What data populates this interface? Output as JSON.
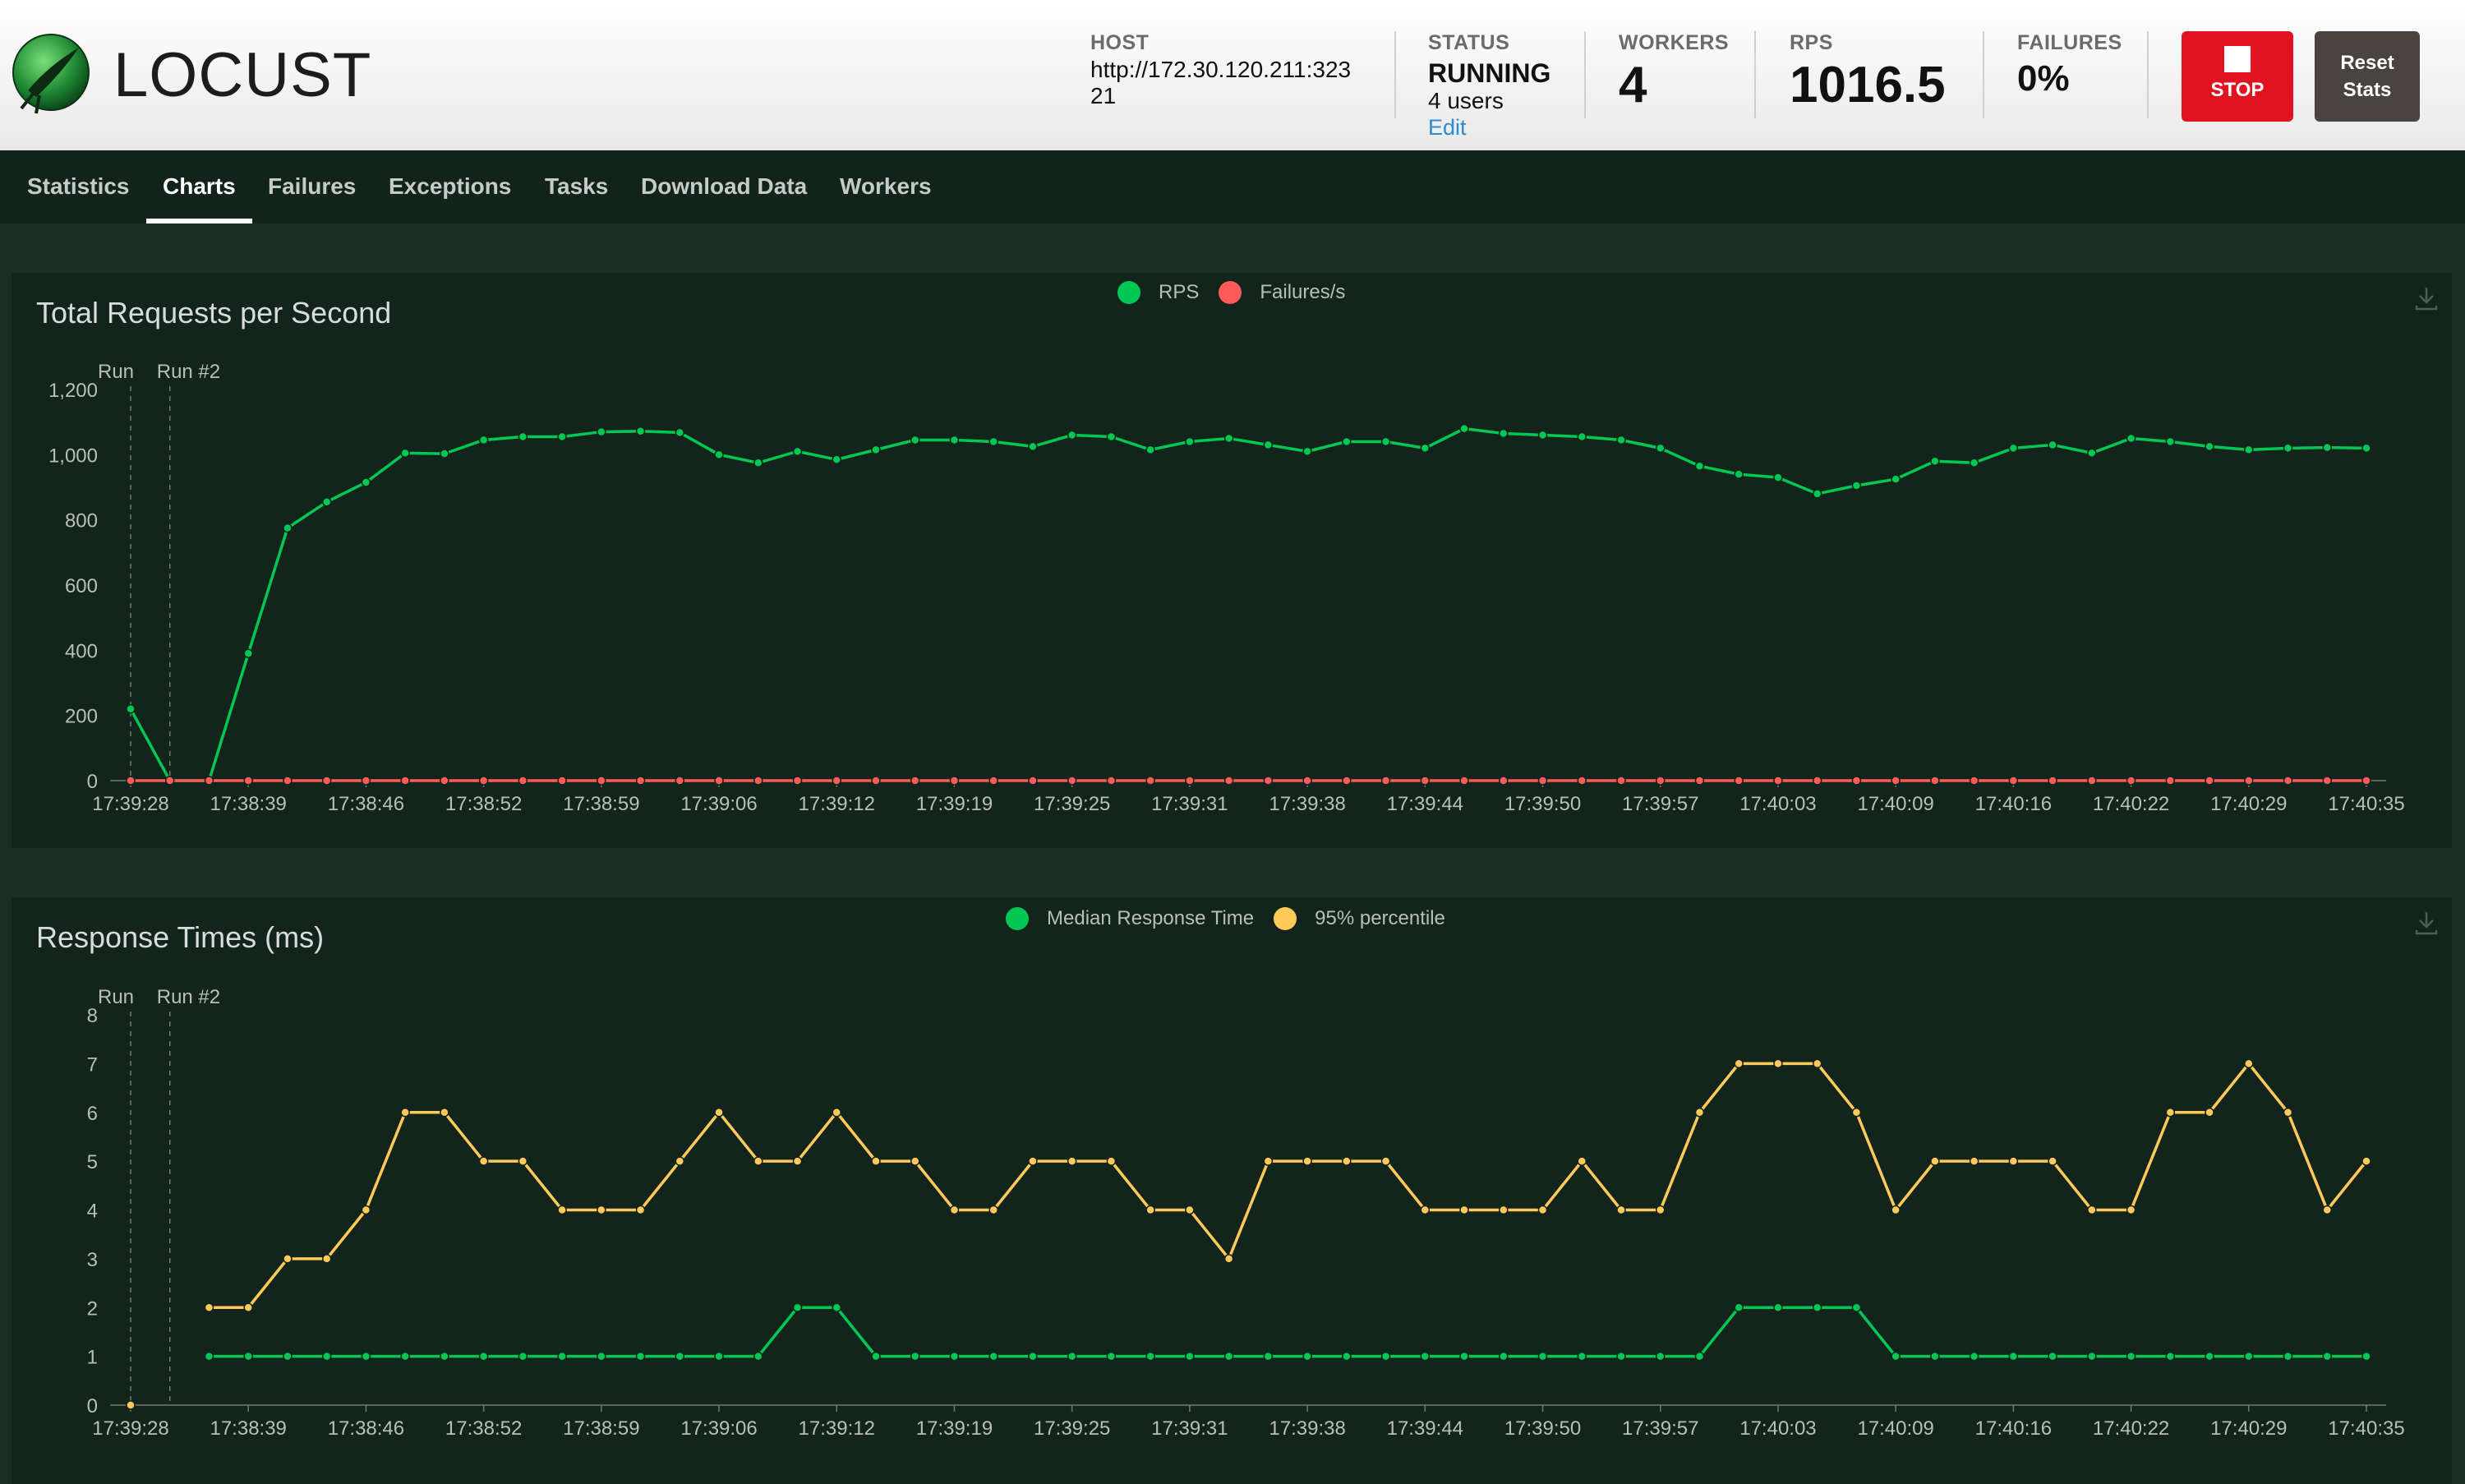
{
  "app": {
    "name": "LOCUST"
  },
  "header": {
    "host_label": "HOST",
    "host_value_line1": "http://172.30.120.211:323",
    "host_value_line2": "21",
    "status_label": "STATUS",
    "status_value": "RUNNING",
    "users_text": "4 users",
    "edit_label": "Edit",
    "workers_label": "WORKERS",
    "workers_value": "4",
    "rps_label": "RPS",
    "rps_value": "1016.5",
    "failures_label": "FAILURES",
    "failures_value": "0%",
    "stop_label": "STOP",
    "reset_label_line1": "Reset",
    "reset_label_line2": "Stats"
  },
  "nav": {
    "tabs": [
      {
        "label": "Statistics"
      },
      {
        "label": "Charts"
      },
      {
        "label": "Failures"
      },
      {
        "label": "Exceptions"
      },
      {
        "label": "Tasks"
      },
      {
        "label": "Download Data"
      },
      {
        "label": "Workers"
      }
    ],
    "active_tab": "Charts"
  },
  "colors": {
    "green": "#00c853",
    "red": "#ff5b5b",
    "yellow": "#ffca5a",
    "stop": "#e01420"
  },
  "chart_data": [
    {
      "type": "line",
      "title": "Total Requests per Second",
      "legend_placement": "top-center",
      "run_markers": [
        "Run",
        "Run #2"
      ],
      "x_tick_labels": [
        "17:39:28",
        "17:38:39",
        "17:38:46",
        "17:38:52",
        "17:38:59",
        "17:39:06",
        "17:39:12",
        "17:39:19",
        "17:39:25",
        "17:39:31",
        "17:39:38",
        "17:39:44",
        "17:39:50",
        "17:39:57",
        "17:40:03",
        "17:40:09",
        "17:40:16",
        "17:40:22",
        "17:40:29",
        "17:40:35"
      ],
      "ylim": [
        0,
        1200
      ],
      "y_ticks": [
        "0",
        "200",
        "400",
        "600",
        "800",
        "1,000",
        "1,200"
      ],
      "grid": false,
      "series": [
        {
          "name": "RPS",
          "color": "#00c853",
          "values": [
            220,
            0,
            0,
            390,
            775,
            855,
            915,
            1005,
            1003,
            1045,
            1055,
            1055,
            1070,
            1072,
            1068,
            1000,
            975,
            1010,
            985,
            1015,
            1045,
            1045,
            1040,
            1025,
            1060,
            1055,
            1015,
            1040,
            1050,
            1030,
            1010,
            1040,
            1040,
            1020,
            1080,
            1065,
            1060,
            1055,
            1045,
            1020,
            965,
            940,
            930,
            880,
            905,
            925,
            980,
            975,
            1020,
            1030,
            1005,
            1050,
            1040,
            1025,
            1015,
            1020,
            1022,
            1020
          ]
        },
        {
          "name": "Failures/s",
          "color": "#ff5b5b",
          "values": [
            0,
            0,
            0,
            0,
            0,
            0,
            0,
            0,
            0,
            0,
            0,
            0,
            0,
            0,
            0,
            0,
            0,
            0,
            0,
            0,
            0,
            0,
            0,
            0,
            0,
            0,
            0,
            0,
            0,
            0,
            0,
            0,
            0,
            0,
            0,
            0,
            0,
            0,
            0,
            0,
            0,
            0,
            0,
            0,
            0,
            0,
            0,
            0,
            0,
            0,
            0,
            0,
            0,
            0,
            0,
            0,
            0,
            0
          ]
        }
      ]
    },
    {
      "type": "line",
      "title": "Response Times (ms)",
      "legend_placement": "top-center",
      "run_markers": [
        "Run",
        "Run #2"
      ],
      "x_tick_labels": [
        "17:39:28",
        "17:38:39",
        "17:38:46",
        "17:38:52",
        "17:38:59",
        "17:39:06",
        "17:39:12",
        "17:39:19",
        "17:39:25",
        "17:39:31",
        "17:39:38",
        "17:39:44",
        "17:39:50",
        "17:39:57",
        "17:40:03",
        "17:40:09",
        "17:40:16",
        "17:40:22",
        "17:40:29",
        "17:40:35"
      ],
      "ylim": [
        0,
        8
      ],
      "y_ticks": [
        "0",
        "1",
        "2",
        "3",
        "4",
        "5",
        "6",
        "7",
        "8"
      ],
      "grid": false,
      "series": [
        {
          "name": "Median Response Time",
          "color": "#00c853",
          "values": [
            null,
            null,
            1,
            1,
            1,
            1,
            1,
            1,
            1,
            1,
            1,
            1,
            1,
            1,
            1,
            1,
            1,
            2,
            2,
            1,
            1,
            1,
            1,
            1,
            1,
            1,
            1,
            1,
            1,
            1,
            1,
            1,
            1,
            1,
            1,
            1,
            1,
            1,
            1,
            1,
            1,
            2,
            2,
            2,
            2,
            1,
            1,
            1,
            1,
            1,
            1,
            1,
            1,
            1,
            1,
            1,
            1,
            1
          ]
        },
        {
          "name": "95% percentile",
          "color": "#ffca5a",
          "values": [
            0,
            null,
            2,
            2,
            3,
            3,
            4,
            6,
            6,
            5,
            5,
            4,
            4,
            4,
            5,
            6,
            5,
            5,
            6,
            5,
            5,
            4,
            4,
            5,
            5,
            5,
            4,
            4,
            3,
            5,
            5,
            5,
            5,
            4,
            4,
            4,
            4,
            5,
            4,
            4,
            6,
            7,
            7,
            7,
            6,
            4,
            5,
            5,
            5,
            5,
            4,
            4,
            6,
            6,
            7,
            6,
            4,
            5
          ]
        }
      ]
    }
  ]
}
